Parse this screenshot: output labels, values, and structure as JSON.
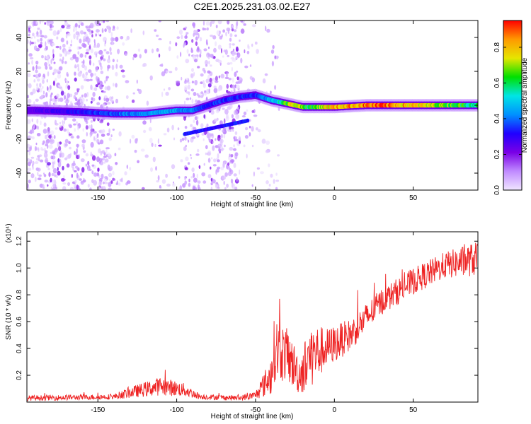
{
  "title": "C2E1.2025.231.03.02.E27",
  "chart_data": [
    {
      "type": "heatmap",
      "xlabel": "Height of straight line (km)",
      "ylabel": "Frequency (Hz)",
      "xlim": [
        -195,
        91
      ],
      "ylim": [
        -50,
        50
      ],
      "xticks": [
        -150,
        -100,
        -50,
        0,
        50
      ],
      "yticks": [
        -40,
        -20,
        0,
        20,
        40
      ],
      "colorbar": {
        "label": "Normalized spectral amplitude",
        "range": [
          0.0,
          0.95
        ],
        "ticks": [
          0.0,
          0.2,
          0.4,
          0.6,
          0.8
        ],
        "colors": [
          "#f0e6ff",
          "#c08aff",
          "#7a00e6",
          "#2000ff",
          "#0090ff",
          "#00e5e5",
          "#00e000",
          "#e6e600",
          "#ff9900",
          "#ff0000"
        ]
      },
      "ridge": {
        "description_points": [
          {
            "x": -190,
            "freq": -3
          },
          {
            "x": -160,
            "freq": -4
          },
          {
            "x": -140,
            "freq": -5
          },
          {
            "x": -120,
            "freq": -5
          },
          {
            "x": -100,
            "freq": -3
          },
          {
            "x": -90,
            "freq": -3
          },
          {
            "x": -80,
            "freq": 0
          },
          {
            "x": -70,
            "freq": 3
          },
          {
            "x": -60,
            "freq": 5
          },
          {
            "x": -50,
            "freq": 6
          },
          {
            "x": -40,
            "freq": 3
          },
          {
            "x": -30,
            "freq": 1
          },
          {
            "x": -20,
            "freq": -1
          },
          {
            "x": -10,
            "freq": -1
          },
          {
            "x": 0,
            "freq": -1
          },
          {
            "x": 20,
            "freq": 0
          },
          {
            "x": 50,
            "freq": 0
          },
          {
            "x": 90,
            "freq": 0
          }
        ],
        "amplitude": [
          {
            "x": -190,
            "a": 0.25
          },
          {
            "x": -150,
            "a": 0.35
          },
          {
            "x": -120,
            "a": 0.45
          },
          {
            "x": -100,
            "a": 0.45
          },
          {
            "x": -80,
            "a": 0.35
          },
          {
            "x": -60,
            "a": 0.35
          },
          {
            "x": -50,
            "a": 0.35
          },
          {
            "x": -35,
            "a": 0.55
          },
          {
            "x": -25,
            "a": 0.8
          },
          {
            "x": -15,
            "a": 0.6
          },
          {
            "x": -5,
            "a": 0.8
          },
          {
            "x": 10,
            "a": 0.85
          },
          {
            "x": 30,
            "a": 0.9
          },
          {
            "x": 60,
            "a": 0.75
          },
          {
            "x": 90,
            "a": 0.6
          }
        ]
      }
    },
    {
      "type": "line",
      "xlabel": "Height of straight line (km)",
      "ylabel": "SNR (10 * v/v)",
      "yscale_note": "(x10⁴)",
      "xlim": [
        -195,
        91
      ],
      "ylim": [
        0.0,
        1.27
      ],
      "xticks": [
        -150,
        -100,
        -50,
        0,
        50
      ],
      "yticks": [
        0.2,
        0.4,
        0.6,
        0.8,
        1.0,
        1.2
      ],
      "series": [
        {
          "color": "#ee2222",
          "envelope": [
            {
              "x": -195,
              "mean": 0.03,
              "amp": 0.02
            },
            {
              "x": -140,
              "mean": 0.04,
              "amp": 0.02
            },
            {
              "x": -130,
              "mean": 0.07,
              "amp": 0.04
            },
            {
              "x": -110,
              "mean": 0.12,
              "amp": 0.07
            },
            {
              "x": -95,
              "mean": 0.09,
              "amp": 0.05
            },
            {
              "x": -85,
              "mean": 0.04,
              "amp": 0.02
            },
            {
              "x": -60,
              "mean": 0.03,
              "amp": 0.02
            },
            {
              "x": -50,
              "mean": 0.05,
              "amp": 0.03
            },
            {
              "x": -40,
              "mean": 0.2,
              "amp": 0.15
            },
            {
              "x": -38,
              "mean": 0.4,
              "amp": 0.25
            },
            {
              "x": -30,
              "mean": 0.35,
              "amp": 0.2
            },
            {
              "x": -22,
              "mean": 0.2,
              "amp": 0.15
            },
            {
              "x": -15,
              "mean": 0.35,
              "amp": 0.25
            },
            {
              "x": -5,
              "mean": 0.4,
              "amp": 0.15
            },
            {
              "x": 10,
              "mean": 0.5,
              "amp": 0.12
            },
            {
              "x": 30,
              "mean": 0.75,
              "amp": 0.1
            },
            {
              "x": 50,
              "mean": 0.9,
              "amp": 0.1
            },
            {
              "x": 70,
              "mean": 1.02,
              "amp": 0.1
            },
            {
              "x": 91,
              "mean": 1.07,
              "amp": 0.13
            }
          ]
        }
      ]
    }
  ]
}
